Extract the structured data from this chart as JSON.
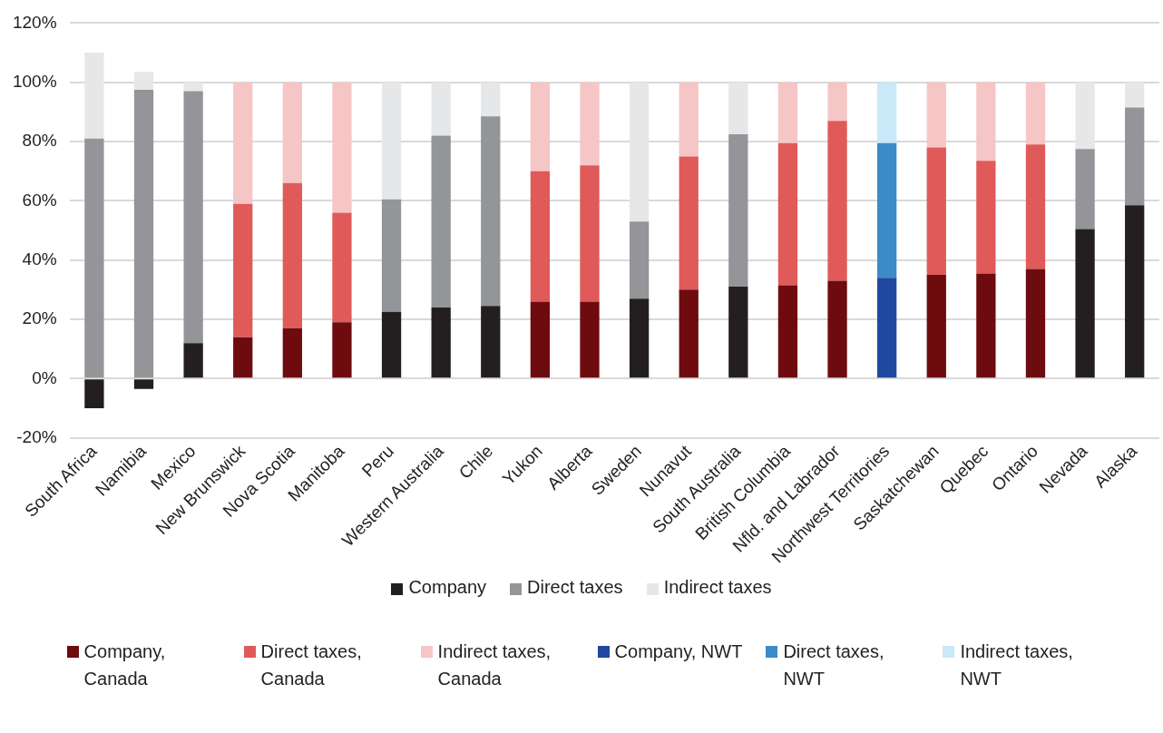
{
  "chart_data": {
    "type": "bar",
    "stacked": true,
    "grid": "y",
    "legend": "bottom",
    "categories": [
      "South Africa",
      "Namibia",
      "Mexico",
      "New Brunswick",
      "Nova Scotia",
      "Manitoba",
      "Peru",
      "Western Australia",
      "Chile",
      "Yukon",
      "Alberta",
      "Sweden",
      "Nunavut",
      "South Australia",
      "British Columbia",
      "Nfld. and Labrador",
      "Northwest Territories",
      "Saskatchewan",
      "Quebec",
      "Ontario",
      "Nevada",
      "Alaska"
    ],
    "ylim": [
      -20,
      120
    ],
    "yticks": [
      {
        "value": -20,
        "label": "-20%"
      },
      {
        "value": 0,
        "label": "0%"
      },
      {
        "value": 20,
        "label": "20%"
      },
      {
        "value": 40,
        "label": "40%"
      },
      {
        "value": 60,
        "label": "60%"
      },
      {
        "value": 80,
        "label": "80%"
      },
      {
        "value": 100,
        "label": "100%"
      },
      {
        "value": 120,
        "label": "120%"
      }
    ],
    "series": [
      {
        "name": "Company",
        "color": "#231f20",
        "values": [
          -10,
          -3.5,
          12,
          null,
          null,
          null,
          22.5,
          24,
          24.5,
          null,
          null,
          27,
          null,
          31,
          null,
          null,
          null,
          null,
          null,
          null,
          50.5,
          58.5
        ]
      },
      {
        "name": "Direct taxes",
        "color": "#939598",
        "values": [
          81,
          97.5,
          85,
          null,
          null,
          null,
          38,
          58,
          64,
          null,
          null,
          26,
          null,
          51.5,
          null,
          null,
          null,
          null,
          null,
          null,
          27,
          33
        ]
      },
      {
        "name": "Indirect taxes",
        "color": "#e6e7e8",
        "values": [
          29,
          6,
          3,
          null,
          null,
          null,
          39.5,
          18,
          11.5,
          null,
          null,
          47,
          null,
          17.5,
          null,
          null,
          null,
          null,
          null,
          null,
          22.5,
          8.5
        ]
      },
      {
        "name": "Company, Canada",
        "color": "#6d0b0f",
        "values": [
          null,
          null,
          null,
          14,
          17,
          19,
          null,
          null,
          null,
          26,
          26,
          null,
          30,
          null,
          31.5,
          33,
          null,
          35,
          35.5,
          37,
          null,
          null
        ]
      },
      {
        "name": "Direct taxes, Canada",
        "color": "#e05a5a",
        "values": [
          null,
          null,
          null,
          45,
          49,
          37,
          null,
          null,
          null,
          44,
          46,
          null,
          45,
          null,
          48,
          54,
          null,
          43,
          38,
          42,
          null,
          null
        ]
      },
      {
        "name": "Indirect taxes, Canada",
        "color": "#f6c6c6",
        "values": [
          null,
          null,
          null,
          41,
          34,
          44,
          null,
          null,
          null,
          30,
          28,
          null,
          25,
          null,
          20.5,
          13,
          null,
          22,
          26.5,
          21,
          null,
          null
        ]
      },
      {
        "name": "Company, NWT",
        "color": "#1f48a0",
        "values": [
          null,
          null,
          null,
          null,
          null,
          null,
          null,
          null,
          null,
          null,
          null,
          null,
          null,
          null,
          null,
          null,
          34,
          null,
          null,
          null,
          null,
          null
        ]
      },
      {
        "name": "Direct taxes, NWT",
        "color": "#3b8bc8",
        "values": [
          null,
          null,
          null,
          null,
          null,
          null,
          null,
          null,
          null,
          null,
          null,
          null,
          null,
          null,
          null,
          null,
          45.5,
          null,
          null,
          null,
          null,
          null
        ]
      },
      {
        "name": "Indirect taxes, NWT",
        "color": "#c9e8f8",
        "values": [
          null,
          null,
          null,
          null,
          null,
          null,
          null,
          null,
          null,
          null,
          null,
          null,
          null,
          null,
          null,
          null,
          20.5,
          null,
          null,
          null,
          null,
          null
        ]
      }
    ]
  }
}
